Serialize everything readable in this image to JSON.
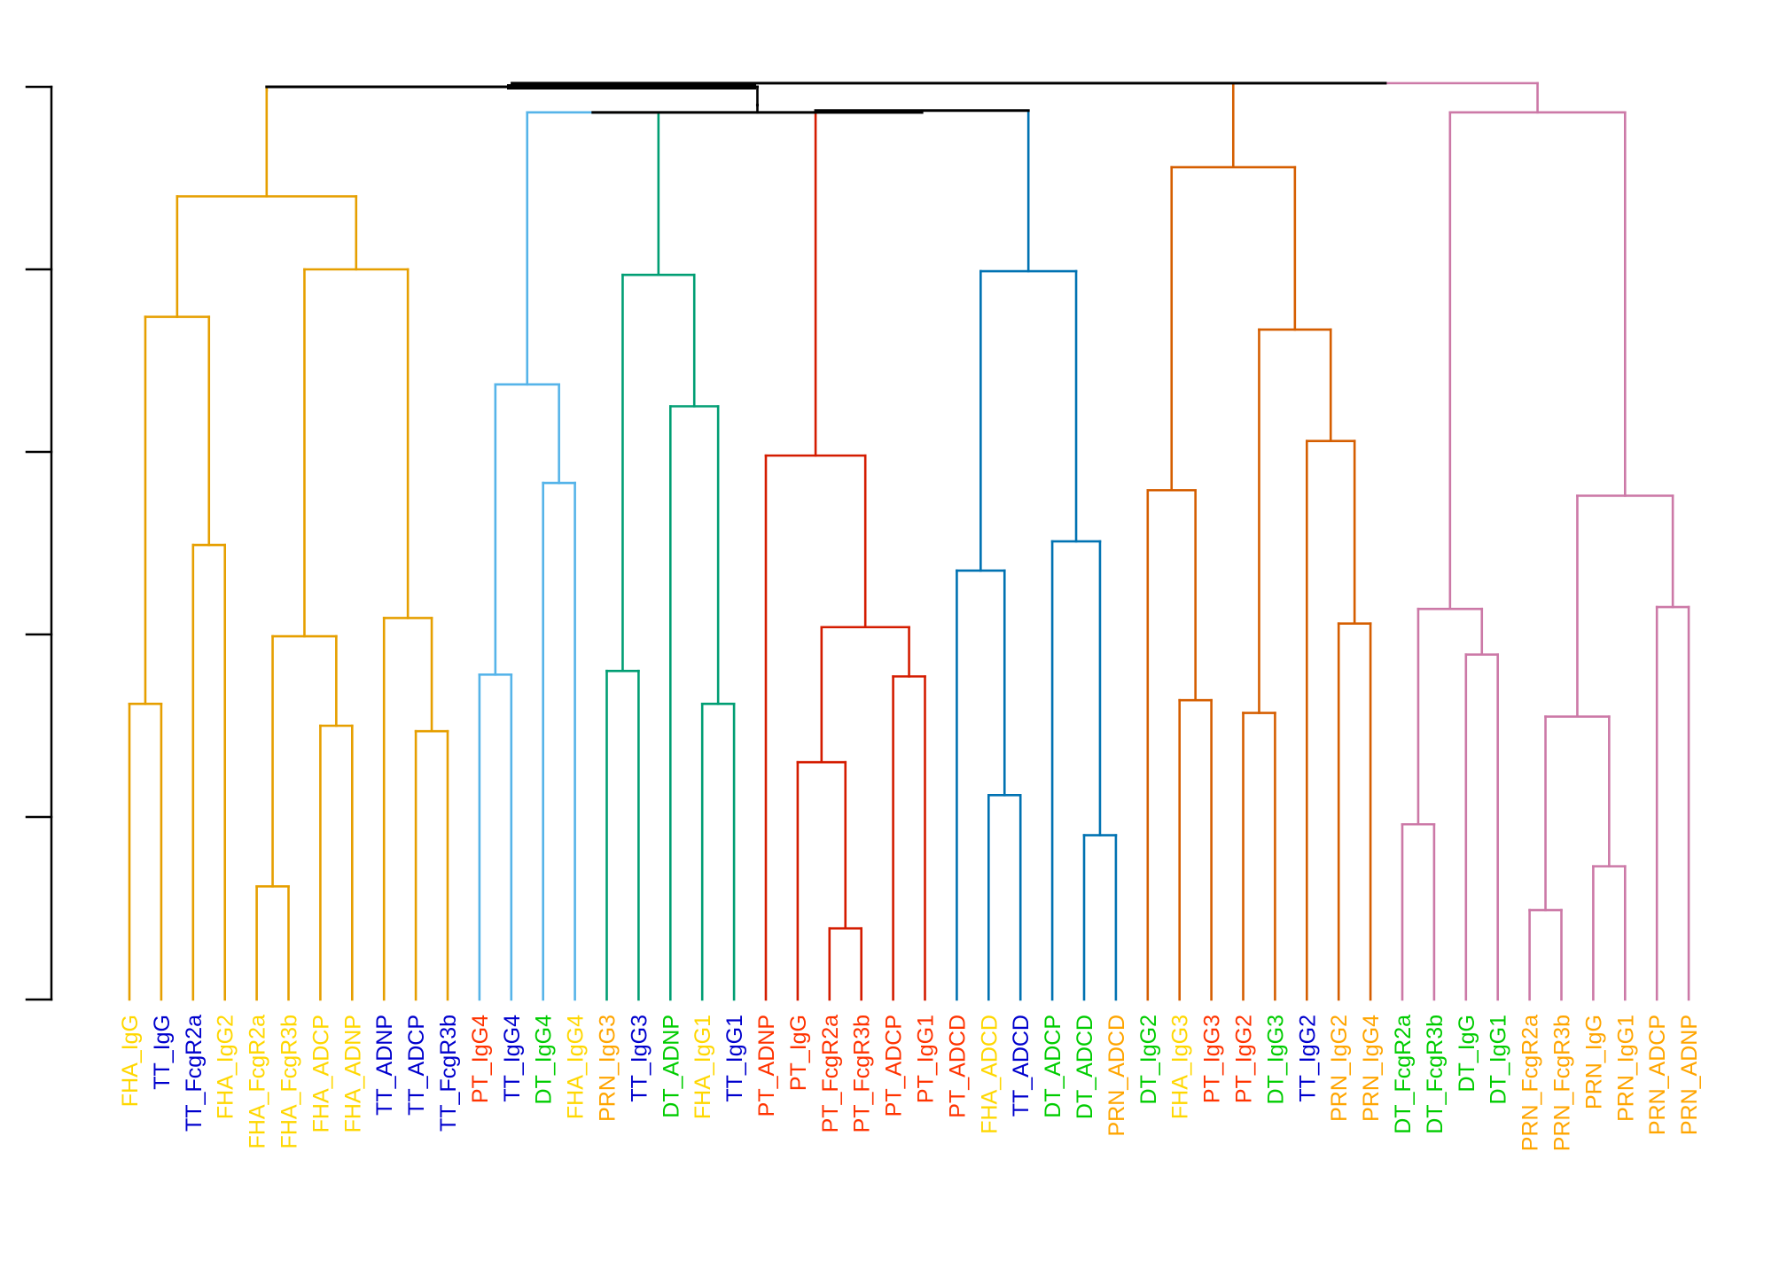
{
  "chart_data": {
    "type": "dendrogram",
    "title": "",
    "xlabel": "",
    "ylabel": "",
    "y_axis": {
      "ticks": 6,
      "tick_labels_printed": false
    },
    "colors": {
      "orange": "#E69F00",
      "skyblue": "#56B4E9",
      "green": "#009E73",
      "red": "#D41C00",
      "blue": "#0072B2",
      "vermillion": "#D55E00",
      "purple": "#CC79A7",
      "root": "#000000"
    },
    "label_colors": {
      "FHA": "#FFD700",
      "TT": "#0000CD",
      "PT": "#FF3300",
      "DT": "#00CC00",
      "PRN": "#FFA500"
    },
    "leaves": [
      "FHA_IgG",
      "TT_IgG",
      "TT_FcgR2a",
      "FHA_IgG2",
      "FHA_FcgR2a",
      "FHA_FcgR3b",
      "FHA_ADCP",
      "FHA_ADNP",
      "TT_ADNP",
      "TT_ADCP",
      "TT_FcgR3b",
      "PT_IgG4",
      "TT_IgG4",
      "DT_IgG4",
      "FHA_IgG4",
      "PRN_IgG3",
      "TT_IgG3",
      "DT_ADNP",
      "FHA_IgG1",
      "TT_IgG1",
      "PT_ADNP",
      "PT_IgG",
      "PT_FcgR2a",
      "PT_FcgR3b",
      "PT_ADCP",
      "PT_IgG1",
      "PT_ADCD",
      "FHA_ADCD",
      "TT_ADCD",
      "DT_ADCP",
      "DT_ADCD",
      "PRN_ADCD",
      "DT_IgG2",
      "FHA_IgG3",
      "PT_IgG3",
      "PT_IgG2",
      "DT_IgG3",
      "TT_IgG2",
      "PRN_IgG2",
      "PRN_IgG4",
      "DT_FcgR2a",
      "DT_FcgR3b",
      "DT_IgG",
      "DT_IgG1",
      "PRN_FcgR2a",
      "PRN_FcgR3b",
      "PRN_IgG",
      "PRN_IgG1",
      "PRN_ADCP",
      "PRN_ADNP"
    ],
    "tree": {
      "h": 5.02,
      "c": "root",
      "ch": [
        {
          "h": 5.0,
          "c": "root",
          "ch": [
            {
              "h": 4.98,
              "c": "orange",
              "ch": [
                {
                  "h": 4.4,
                  "c": "orange",
                  "ch": [
                    {
                      "h": 3.74,
                      "c": "orange",
                      "ch": [
                        {
                          "h": 1.62,
                          "c": "orange",
                          "ch": [
                            {
                              "leaf": 0
                            },
                            {
                              "leaf": 1
                            }
                          ]
                        },
                        {
                          "h": 2.49,
                          "c": "orange",
                          "ch": [
                            {
                              "leaf": 2
                            },
                            {
                              "leaf": 3
                            }
                          ]
                        }
                      ]
                    },
                    {
                      "h": 4.0,
                      "c": "orange",
                      "ch": [
                        {
                          "h": 1.99,
                          "c": "orange",
                          "ch": [
                            {
                              "h": 0.62,
                              "c": "orange",
                              "ch": [
                                {
                                  "leaf": 4
                                },
                                {
                                  "leaf": 5
                                }
                              ]
                            },
                            {
                              "h": 1.5,
                              "c": "orange",
                              "ch": [
                                {
                                  "leaf": 6
                                },
                                {
                                  "leaf": 7
                                }
                              ]
                            }
                          ]
                        },
                        {
                          "h": 2.09,
                          "c": "orange",
                          "ch": [
                            {
                              "leaf": 8
                            },
                            {
                              "h": 1.47,
                              "c": "orange",
                              "ch": [
                                {
                                  "leaf": 9
                                },
                                {
                                  "leaf": 10
                                }
                              ]
                            }
                          ]
                        }
                      ]
                    }
                  ]
                }
              ]
            },
            {
              "h": 4.9,
              "c": "root",
              "ch": [
                {
                  "h": 4.86,
                  "c": "root",
                  "ch": [
                    {
                      "h": 4.86,
                      "c": "skyblue",
                      "ch": [
                        {
                          "h": 3.37,
                          "c": "skyblue",
                          "ch": [
                            {
                              "h": 1.78,
                              "c": "skyblue",
                              "ch": [
                                {
                                  "leaf": 11
                                },
                                {
                                  "leaf": 12
                                }
                              ]
                            },
                            {
                              "h": 2.83,
                              "c": "skyblue",
                              "ch": [
                                {
                                  "leaf": 13
                                },
                                {
                                  "leaf": 14
                                }
                              ]
                            }
                          ]
                        },
                        {
                          "h": 3.97,
                          "c": "green",
                          "ch": [
                            {
                              "h": 1.8,
                              "c": "green",
                              "ch": [
                                {
                                  "leaf": 15
                                },
                                {
                                  "leaf": 16
                                }
                              ]
                            },
                            {
                              "h": 3.25,
                              "c": "green",
                              "ch": [
                                {
                                  "leaf": 17
                                },
                                {
                                  "h": 1.62,
                                  "c": "green",
                                  "ch": [
                                    {
                                      "leaf": 18
                                    },
                                    {
                                      "leaf": 19
                                    }
                                  ]
                                }
                              ]
                            }
                          ]
                        }
                      ]
                    },
                    {
                      "h": 4.87,
                      "c": "root",
                      "ch": [
                        {
                          "h": 2.98,
                          "c": "red",
                          "ch": [
                            {
                              "leaf": 20
                            },
                            {
                              "h": 2.04,
                              "c": "red",
                              "ch": [
                                {
                                  "h": 1.3,
                                  "c": "red",
                                  "ch": [
                                    {
                                      "leaf": 21
                                    },
                                    {
                                      "h": 0.39,
                                      "c": "red",
                                      "ch": [
                                        {
                                          "leaf": 22
                                        },
                                        {
                                          "leaf": 23
                                        }
                                      ]
                                    }
                                  ]
                                },
                                {
                                  "h": 1.77,
                                  "c": "red",
                                  "ch": [
                                    {
                                      "leaf": 24
                                    },
                                    {
                                      "leaf": 25
                                    }
                                  ]
                                }
                              ]
                            }
                          ]
                        },
                        {
                          "h": 3.99,
                          "c": "blue",
                          "ch": [
                            {
                              "h": 2.35,
                              "c": "blue",
                              "ch": [
                                {
                                  "leaf": 26
                                },
                                {
                                  "h": 1.12,
                                  "c": "blue",
                                  "ch": [
                                    {
                                      "leaf": 27
                                    },
                                    {
                                      "leaf": 28
                                    }
                                  ]
                                }
                              ]
                            },
                            {
                              "h": 2.51,
                              "c": "blue",
                              "ch": [
                                {
                                  "leaf": 29
                                },
                                {
                                  "h": 0.9,
                                  "c": "blue",
                                  "ch": [
                                    {
                                      "leaf": 30
                                    },
                                    {
                                      "leaf": 31
                                    }
                                  ]
                                }
                              ]
                            }
                          ]
                        }
                      ]
                    }
                  ]
                }
              ]
            }
          ]
        },
        {
          "h": 5.02,
          "c": "purple",
          "ch": [
            {
              "h": 4.56,
              "c": "vermillion",
              "ch": [
                {
                  "h": 2.79,
                  "c": "vermillion",
                  "ch": [
                    {
                      "leaf": 32
                    },
                    {
                      "h": 1.64,
                      "c": "vermillion",
                      "ch": [
                        {
                          "leaf": 33
                        },
                        {
                          "leaf": 34
                        }
                      ]
                    }
                  ]
                },
                {
                  "h": 3.67,
                  "c": "vermillion",
                  "ch": [
                    {
                      "h": 1.57,
                      "c": "vermillion",
                      "ch": [
                        {
                          "leaf": 35
                        },
                        {
                          "leaf": 36
                        }
                      ]
                    },
                    {
                      "h": 3.06,
                      "c": "vermillion",
                      "ch": [
                        {
                          "leaf": 37
                        },
                        {
                          "h": 2.06,
                          "c": "vermillion",
                          "ch": [
                            {
                              "leaf": 38
                            },
                            {
                              "leaf": 39
                            }
                          ]
                        }
                      ]
                    }
                  ]
                }
              ]
            },
            {
              "h": 4.86,
              "c": "purple",
              "ch": [
                {
                  "h": 2.14,
                  "c": "purple",
                  "ch": [
                    {
                      "h": 0.96,
                      "c": "purple",
                      "ch": [
                        {
                          "leaf": 40
                        },
                        {
                          "leaf": 41
                        }
                      ]
                    },
                    {
                      "h": 1.89,
                      "c": "purple",
                      "ch": [
                        {
                          "leaf": 42
                        },
                        {
                          "leaf": 43
                        }
                      ]
                    }
                  ]
                },
                {
                  "h": 2.76,
                  "c": "purple",
                  "ch": [
                    {
                      "h": 1.55,
                      "c": "purple",
                      "ch": [
                        {
                          "h": 0.49,
                          "c": "purple",
                          "ch": [
                            {
                              "leaf": 44
                            },
                            {
                              "leaf": 45
                            }
                          ]
                        },
                        {
                          "h": 0.73,
                          "c": "purple",
                          "ch": [
                            {
                              "leaf": 46
                            },
                            {
                              "leaf": 47
                            }
                          ]
                        }
                      ]
                    },
                    {
                      "h": 2.15,
                      "c": "purple",
                      "ch": [
                        {
                          "leaf": 48
                        },
                        {
                          "leaf": 49
                        }
                      ]
                    }
                  ]
                }
              ]
            }
          ]
        }
      ]
    }
  }
}
